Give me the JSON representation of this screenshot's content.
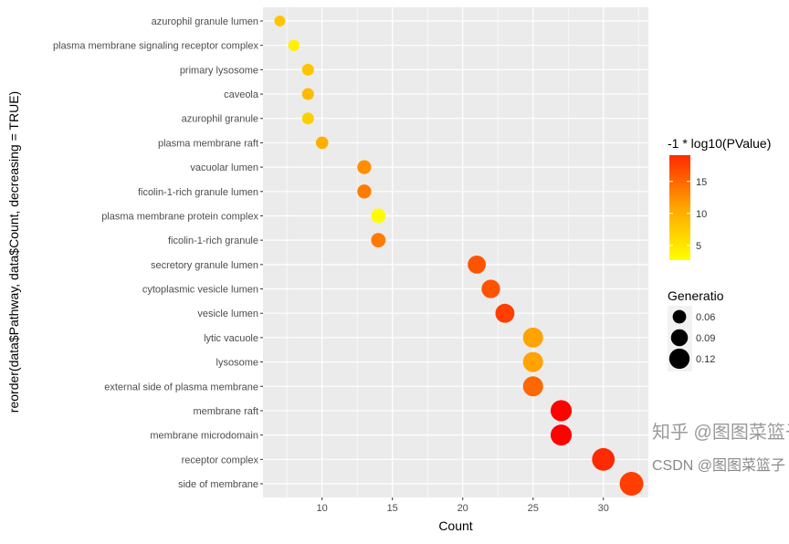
{
  "chart_data": {
    "type": "scatter",
    "xlabel": "Count",
    "ylabel": "reorder(data$Pathway, data$Count, decreasing = TRUE)",
    "xlim": [
      5.8,
      33.2
    ],
    "xticks": [
      10,
      15,
      20,
      25,
      30
    ],
    "grid": true,
    "legend_placement": "right",
    "color_legend": {
      "title": "-1 * log10(PValue)",
      "ticks": [
        5,
        10,
        15
      ],
      "range": [
        2.7,
        19.1
      ],
      "low_color": "#FFFF00",
      "high_color": "#FF0000"
    },
    "size_legend": {
      "title": "Generatio",
      "ticks": [
        0.06,
        0.09,
        0.12
      ]
    },
    "points": [
      {
        "pathway": "azurophil granule lumen",
        "count": 7,
        "neglog10p": 8,
        "generatio": 0.028
      },
      {
        "pathway": "plasma membrane signaling receptor complex",
        "count": 8,
        "neglog10p": 4,
        "generatio": 0.032
      },
      {
        "pathway": "primary lysosome",
        "count": 9,
        "neglog10p": 8,
        "generatio": 0.036
      },
      {
        "pathway": "caveola",
        "count": 9,
        "neglog10p": 9,
        "generatio": 0.036
      },
      {
        "pathway": "azurophil granule",
        "count": 9,
        "neglog10p": 7,
        "generatio": 0.036
      },
      {
        "pathway": "plasma membrane raft",
        "count": 10,
        "neglog10p": 10,
        "generatio": 0.04
      },
      {
        "pathway": "vacuolar lumen",
        "count": 13,
        "neglog10p": 12,
        "generatio": 0.052
      },
      {
        "pathway": "ficolin-1-rich granule lumen",
        "count": 13,
        "neglog10p": 13,
        "generatio": 0.052
      },
      {
        "pathway": "plasma membrane protein complex",
        "count": 14,
        "neglog10p": 3,
        "generatio": 0.056
      },
      {
        "pathway": "ficolin-1-rich granule",
        "count": 14,
        "neglog10p": 13,
        "generatio": 0.056
      },
      {
        "pathway": "secretory granule lumen",
        "count": 21,
        "neglog10p": 15,
        "generatio": 0.084
      },
      {
        "pathway": "cytoplasmic vesicle lumen",
        "count": 22,
        "neglog10p": 15,
        "generatio": 0.088
      },
      {
        "pathway": "vesicle lumen",
        "count": 23,
        "neglog10p": 16,
        "generatio": 0.092
      },
      {
        "pathway": "lytic vacuole",
        "count": 25,
        "neglog10p": 11,
        "generatio": 0.1
      },
      {
        "pathway": "lysosome",
        "count": 25,
        "neglog10p": 11,
        "generatio": 0.1
      },
      {
        "pathway": "external side of plasma membrane",
        "count": 25,
        "neglog10p": 14,
        "generatio": 0.1
      },
      {
        "pathway": "membrane raft",
        "count": 27,
        "neglog10p": 19,
        "generatio": 0.108
      },
      {
        "pathway": "membrane microdomain",
        "count": 27,
        "neglog10p": 19,
        "generatio": 0.108
      },
      {
        "pathway": "receptor complex",
        "count": 30,
        "neglog10p": 17,
        "generatio": 0.12
      },
      {
        "pathway": "side of membrane",
        "count": 32,
        "neglog10p": 16,
        "generatio": 0.128
      }
    ]
  },
  "watermark": {
    "line1": "知乎 @图图菜篮子",
    "line2": "CSDN @图图菜篮子"
  }
}
